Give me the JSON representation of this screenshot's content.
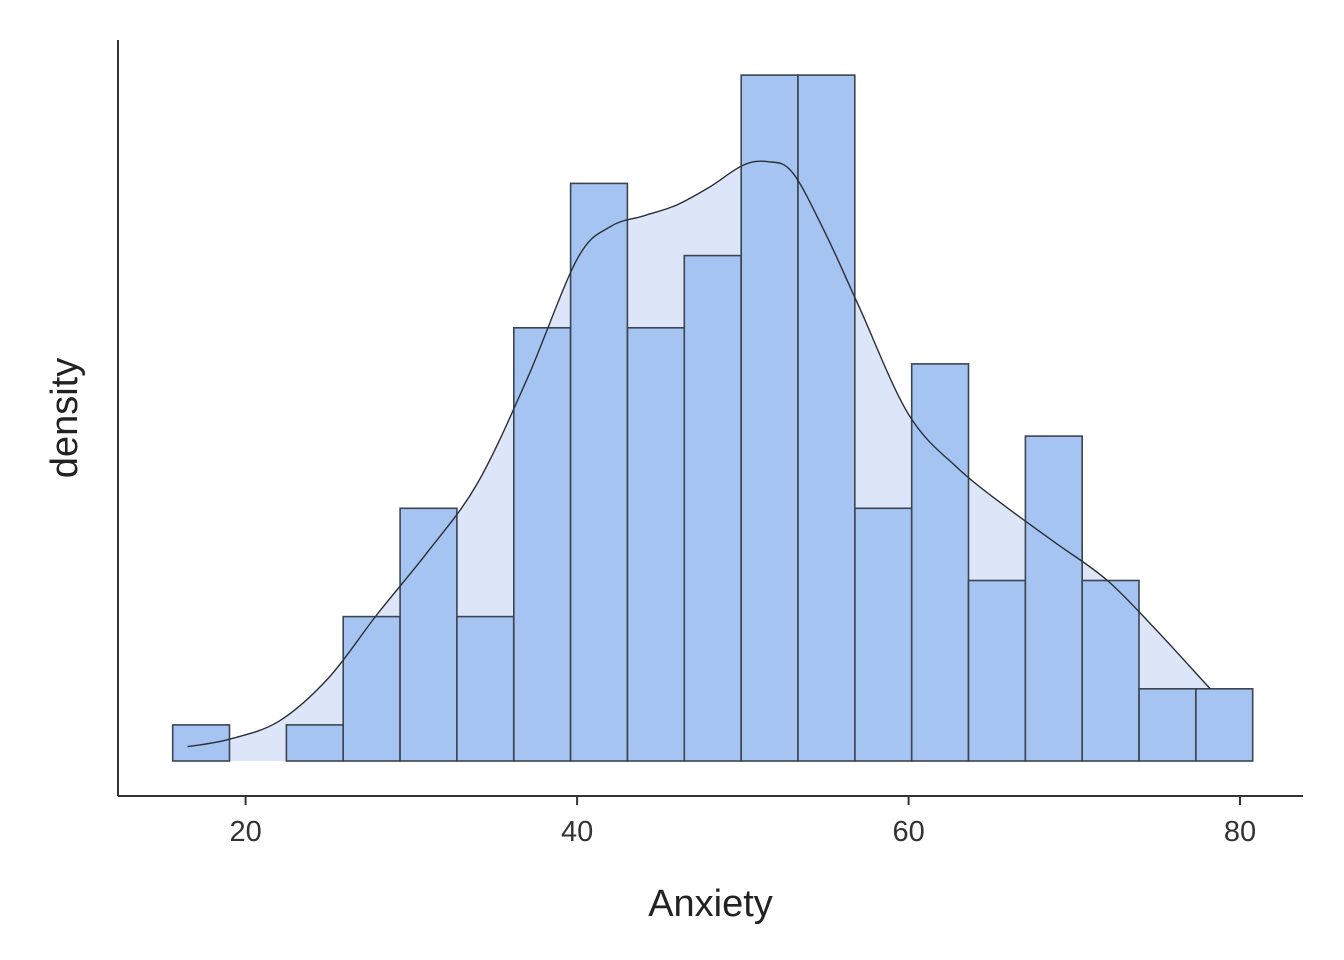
{
  "chart_data": {
    "type": "bar",
    "xlabel": "Anxiety",
    "ylabel": "density",
    "xlim": [
      12.3,
      83.8
    ],
    "x_ticks": [
      20,
      40,
      60,
      80
    ],
    "y_ticks_shown": false,
    "bin_width": 3.43,
    "bins": [
      {
        "start": 15.6,
        "count": 1
      },
      {
        "start": 19.03,
        "count": 0
      },
      {
        "start": 22.46,
        "count": 1
      },
      {
        "start": 25.89,
        "count": 4
      },
      {
        "start": 29.32,
        "count": 7
      },
      {
        "start": 32.75,
        "count": 4
      },
      {
        "start": 36.18,
        "count": 12
      },
      {
        "start": 39.61,
        "count": 16
      },
      {
        "start": 43.04,
        "count": 12
      },
      {
        "start": 46.47,
        "count": 14
      },
      {
        "start": 49.9,
        "count": 19
      },
      {
        "start": 53.33,
        "count": 19
      },
      {
        "start": 56.76,
        "count": 7
      },
      {
        "start": 60.19,
        "count": 11
      },
      {
        "start": 63.62,
        "count": 5
      },
      {
        "start": 67.05,
        "count": 9
      },
      {
        "start": 70.48,
        "count": 5
      },
      {
        "start": 73.91,
        "count": 2
      },
      {
        "start": 77.34,
        "count": 2
      }
    ],
    "density_curve": {
      "x": [
        16.5,
        19,
        22,
        25,
        28,
        31,
        34,
        37,
        40,
        42,
        44,
        46,
        48,
        50,
        51.5,
        53,
        55,
        57,
        60,
        63,
        66,
        69,
        72,
        75,
        78.2
      ],
      "y": [
        0.4,
        0.6,
        1.1,
        2.3,
        4.1,
        5.8,
        7.7,
        10.6,
        13.9,
        14.8,
        15.1,
        15.4,
        15.9,
        16.5,
        16.6,
        16.3,
        14.6,
        12.6,
        9.6,
        8.1,
        7.0,
        6.0,
        5.0,
        3.6,
        2.0
      ]
    },
    "colors": {
      "bar_fill": "#a6c4f1",
      "bar_stroke": "#3c4450",
      "density_fill": "#dce6f8",
      "density_line": "#2a2f36"
    }
  }
}
